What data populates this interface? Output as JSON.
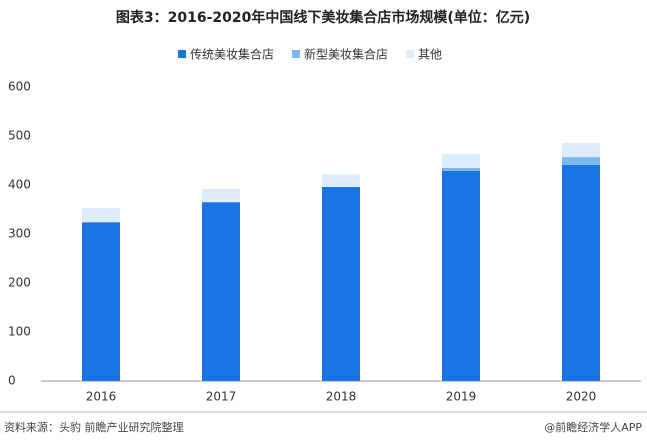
{
  "chart_data": {
    "type": "stacked_bar",
    "title": "图表3：2016-2020年中国线下美妆集合店市场规模(单位：亿元)",
    "categories": [
      "2016",
      "2017",
      "2018",
      "2019",
      "2020"
    ],
    "series": [
      {
        "name": "传统美妆集合店",
        "color": "#1a73e2",
        "values": [
          324,
          365,
          396,
          429,
          441
        ]
      },
      {
        "name": "新型美妆集合店",
        "color": "#7db7f0",
        "values": [
          0,
          0,
          0,
          6,
          16
        ]
      },
      {
        "name": "其他",
        "color": "#ddedfb",
        "values": [
          29,
          27,
          26,
          28,
          29
        ]
      }
    ],
    "ylim": [
      0,
      600
    ],
    "yticks": [
      0,
      100,
      200,
      300,
      400,
      500,
      600
    ],
    "grid": false,
    "source": "资料来源：头豹 前瞻产业研究院整理",
    "credit": "@前瞻经济学人APP"
  }
}
